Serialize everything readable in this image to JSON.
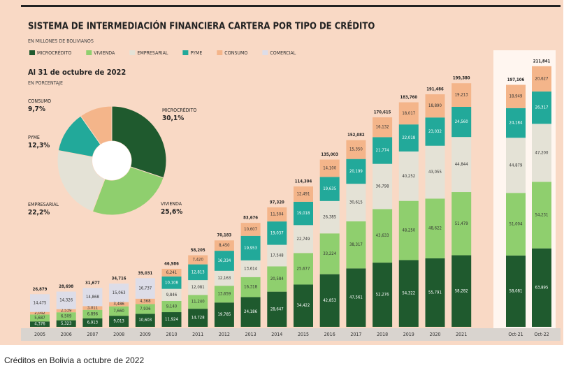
{
  "chart_data": [
    {
      "type": "bar",
      "title": "SISTEMA DE INTERMEDIACIÓN FINANCIERA CARTERA POR TIPO DE CRÉDITO",
      "subtitle": "EN MILLONES DE BOLIVIANOS",
      "categories": [
        "2005",
        "2006",
        "2007",
        "2008",
        "2009",
        "2010",
        "2011",
        "2012",
        "2013",
        "2014",
        "2015",
        "2016",
        "2017",
        "2018",
        "2019",
        "2020",
        "2021",
        "Oct-21",
        "Oct-22"
      ],
      "ylim": [
        0,
        215000
      ],
      "series": [
        {
          "name": "MICROCRÉDITO",
          "color": "#1f5a2e",
          "values": [
            4376,
            5323,
            6913,
            9013,
            10603,
            11924,
            14728,
            19785,
            24186,
            28647,
            34422,
            42853,
            47561,
            52276,
            54322,
            55791,
            58282,
            58081,
            63895
          ],
          "value_labels": [
            "4,376",
            "5,323",
            "6,913",
            "9,013",
            "10,603",
            "11,924",
            "14,728",
            "19,785",
            "24,186",
            "28,647",
            "34,422",
            "42,853",
            "47,561",
            "52,276",
            "54,322",
            "55,791",
            "58,282",
            "58,081",
            "63,895"
          ]
        },
        {
          "name": "VIVIENDA",
          "color": "#8fcf6e",
          "values": [
            5687,
            6509,
            6896,
            7660,
            7936,
            9140,
            11240,
            13659,
            16318,
            20584,
            25677,
            33224,
            38317,
            43633,
            48250,
            48622,
            51479,
            51004,
            54231
          ],
          "value_labels": [
            "5,687",
            "6,509",
            "6,896",
            "7,660",
            "7,936",
            "9,140",
            "11,240",
            "13,659",
            "16,318",
            "20,584",
            "25,677",
            "33,224",
            "38,317",
            "43,633",
            "48,250",
            "48,622",
            "51,479",
            "51,004",
            "54,231"
          ]
        },
        {
          "name": "EMPRESARIAL",
          "color": "#e4e2d6",
          "values": [
            null,
            null,
            null,
            null,
            null,
            9846,
            12081,
            12163,
            13614,
            17548,
            22749,
            26385,
            30615,
            36798,
            40252,
            43055,
            44844,
            44879,
            47200
          ],
          "value_labels": [
            null,
            null,
            null,
            null,
            null,
            "9,846",
            "12,081",
            "12,163",
            "13,614",
            "17,548",
            "22,749",
            "26,385",
            "30,615",
            "36,798",
            "40,252",
            "43,055",
            "44,844",
            "44,879",
            "47,200"
          ]
        },
        {
          "name": "PYME",
          "color": "#22a99a",
          "values": [
            null,
            null,
            null,
            null,
            null,
            10108,
            12813,
            16334,
            19953,
            19037,
            19018,
            19635,
            20199,
            21774,
            22018,
            23032,
            24560,
            24184,
            26317
          ],
          "value_labels": [
            null,
            null,
            null,
            null,
            null,
            "10,108",
            "12,813",
            "16,334",
            "19,953",
            "19,037",
            "19,018",
            "19,635",
            "20,199",
            "21,774",
            "22,018",
            "23,032",
            "24,560",
            "24,184",
            "26,317"
          ]
        },
        {
          "name": "CONSUMO",
          "color": "#f4b58a",
          "values": [
            2042,
            2539,
            3011,
            3486,
            4368,
            6241,
            7420,
            8450,
            10607,
            11504,
            12491,
            14100,
            15350,
            16132,
            18017,
            18890,
            19213,
            18949,
            20627
          ],
          "value_labels": [
            "2,042",
            "2,539",
            "3,011",
            "3,486",
            "4,368",
            "6,241",
            "7,420",
            "8,450",
            "10,607",
            "11,504",
            "12,491",
            "14,100",
            "15,350",
            "16,132",
            "18,017",
            "18,890",
            "19,213",
            "18,949",
            "20,627"
          ]
        },
        {
          "name": "COMERCIAL",
          "color": "#dddde8",
          "values": [
            14475,
            14326,
            14868,
            15063,
            16737,
            null,
            null,
            null,
            null,
            null,
            null,
            null,
            null,
            null,
            null,
            null,
            null,
            null,
            null
          ],
          "value_labels": [
            "14,475",
            "14,326",
            "14,868",
            "15,063",
            "16,737",
            null,
            null,
            null,
            null,
            null,
            null,
            null,
            null,
            null,
            null,
            null,
            null,
            null,
            null
          ]
        }
      ],
      "totals": {
        "values": [
          26879,
          28698,
          31677,
          34716,
          39031,
          46986,
          58205,
          70183,
          83676,
          97320,
          114304,
          135003,
          152082,
          170615,
          183760,
          191486,
          199380,
          197106,
          211841
        ],
        "value_labels": [
          "26,879",
          "28,698",
          "31,677",
          "34,716",
          "39,031",
          "46,986",
          "58,205",
          "70,183",
          "83,676",
          "97,320",
          "114,304",
          "135,003",
          "152,082",
          "170,615",
          "183,760",
          "191,486",
          "199,380",
          "197,106",
          "211,841"
        ]
      }
    },
    {
      "type": "pie",
      "title": "Al 31 de octubre de 2022",
      "subtitle": "EN PORCENTAJE",
      "categories": [
        "MICROCRÉDITO",
        "VIVIENDA",
        "EMPRESARIAL",
        "PYME",
        "CONSUMO"
      ],
      "values": [
        30.1,
        25.6,
        22.2,
        12.3,
        9.7
      ],
      "value_labels": [
        "30,1%",
        "25,6%",
        "22,2%",
        "12,3%",
        "9,7%"
      ],
      "colors": [
        "#1f5a2e",
        "#8fcf6e",
        "#e4e2d6",
        "#22a99a",
        "#f4b58a"
      ]
    }
  ],
  "caption": "Créditos en Bolivia a octubre de 2022"
}
